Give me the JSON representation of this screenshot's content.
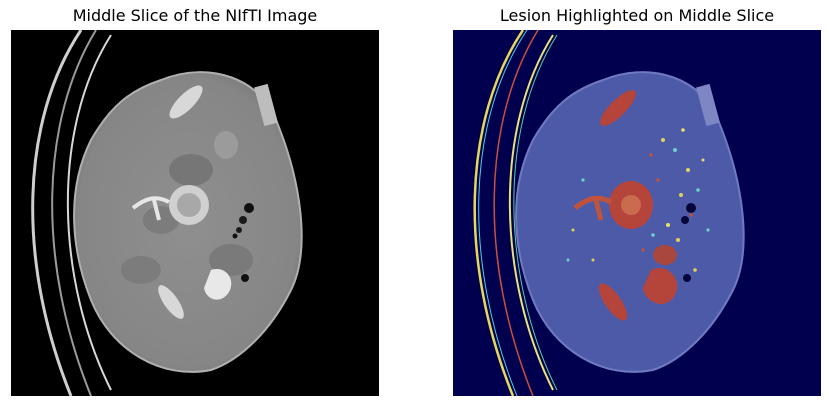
{
  "figure": {
    "left_title": "Middle Slice of the NIfTI Image",
    "right_title": "Lesion Highlighted on Middle Slice"
  },
  "colors": {
    "left_background": "#000000",
    "right_background": "#00004f",
    "body_gray": "#8a8a8a",
    "overlay_body": "#4d5aa8",
    "lesion_red": "#b5453a"
  }
}
